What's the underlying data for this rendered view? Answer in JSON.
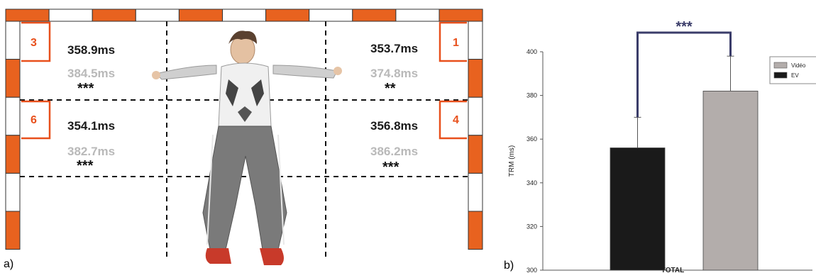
{
  "panel_a": {
    "label": "a)",
    "zones": [
      {
        "number": "3",
        "time_ev": "358.9ms",
        "time_video": "384.5ms",
        "significance": "***"
      },
      {
        "number": "1",
        "time_ev": "353.7ms",
        "time_video": "374.8ms",
        "significance": "**"
      },
      {
        "number": "6",
        "time_ev": "354.1ms",
        "time_video": "382.7ms",
        "significance": "***"
      },
      {
        "number": "4",
        "time_ev": "356.8ms",
        "time_video": "386.2ms",
        "significance": "***"
      }
    ],
    "colors": {
      "orange": "#e8621f",
      "ev_text": "#1a1a1a",
      "video_text": "#b9b9b9",
      "zone_number": "#e8501c"
    }
  },
  "panel_b": {
    "label": "b)"
  },
  "chart_data": {
    "type": "bar",
    "categories": [
      "TOTAL"
    ],
    "xlabel": "TOTAL",
    "ylabel": "TRM (ms)",
    "ylim": [
      300,
      400
    ],
    "yticks": [
      300,
      320,
      340,
      360,
      380,
      400
    ],
    "grid": false,
    "legend_position": "top-right",
    "series": [
      {
        "name": "EV",
        "values": [
          356
        ],
        "error": [
          14
        ],
        "color": "#1a1a1a"
      },
      {
        "name": "Vidéo",
        "values": [
          382
        ],
        "error": [
          16
        ],
        "color": "#b3adab"
      }
    ],
    "annotation": "***",
    "bracket_color": "#3b3d6a"
  }
}
